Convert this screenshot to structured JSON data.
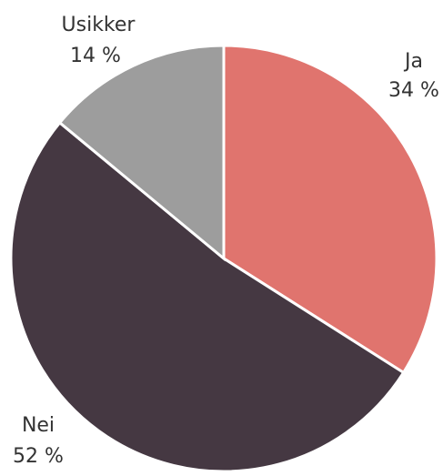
{
  "chart_data": {
    "type": "pie",
    "categories": [
      "Ja",
      "Nei",
      "Usikker"
    ],
    "values": [
      34,
      52,
      14
    ],
    "value_labels": [
      "34 %",
      "52 %",
      "14 %"
    ],
    "colors": [
      "#e0746e",
      "#453842",
      "#9d9d9d"
    ]
  }
}
